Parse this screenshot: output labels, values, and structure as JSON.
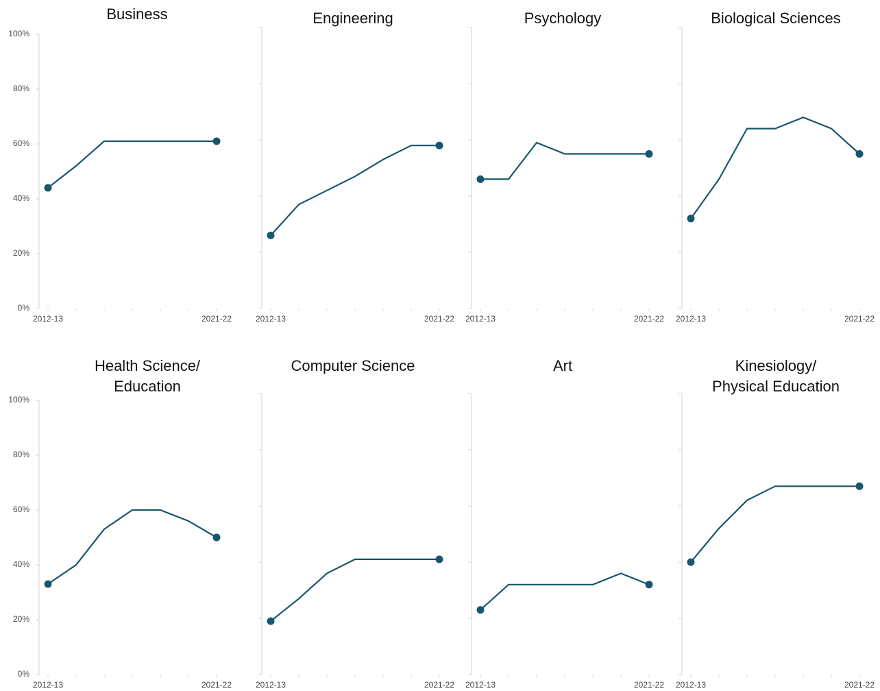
{
  "chart_data": [
    {
      "type": "line",
      "title": [
        "Business"
      ],
      "categories": [
        "2012-13",
        null,
        null,
        null,
        null,
        null,
        "2021-22"
      ],
      "series": [
        {
          "color": "#17566e",
          "values": [
            44,
            52,
            61,
            61,
            61,
            61,
            61
          ]
        }
      ],
      "ylim": [
        0,
        100
      ],
      "yticks": [
        {
          "value": 0,
          "label": "0%"
        },
        {
          "value": 20,
          "label": "20%"
        },
        {
          "value": 40,
          "label": "40%"
        },
        {
          "value": 60,
          "label": "60%"
        },
        {
          "value": 80,
          "label": "80%"
        },
        {
          "value": 100,
          "label": "100%"
        }
      ]
    },
    {
      "type": "line",
      "title": [
        "Engineering"
      ],
      "categories": [
        "2012-13",
        null,
        null,
        null,
        null,
        null,
        "2021-22"
      ],
      "series": [
        {
          "color": "#17566e",
          "values": [
            26,
            37,
            42,
            47,
            53,
            58,
            58
          ]
        }
      ],
      "ylim": [
        0,
        100
      ],
      "yticks": [
        0,
        20,
        40,
        60,
        80,
        100
      ]
    },
    {
      "type": "line",
      "title": [
        "Psychology"
      ],
      "categories": [
        "2012-13",
        null,
        null,
        null,
        null,
        null,
        "2021-22"
      ],
      "series": [
        {
          "color": "#17566e",
          "values": [
            46,
            46,
            59,
            55,
            55,
            55,
            55
          ]
        }
      ],
      "ylim": [
        0,
        100
      ],
      "yticks": [
        0,
        20,
        40,
        60,
        80,
        100
      ]
    },
    {
      "type": "line",
      "title": [
        "Biological Sciences"
      ],
      "categories": [
        "2012-13",
        null,
        null,
        null,
        null,
        null,
        "2021-22"
      ],
      "series": [
        {
          "color": "#17566e",
          "values": [
            32,
            46,
            64,
            64,
            68,
            64,
            55
          ]
        }
      ],
      "ylim": [
        0,
        100
      ],
      "yticks": [
        0,
        20,
        40,
        60,
        80,
        100
      ]
    },
    {
      "type": "line",
      "title": [
        "Health Science/",
        "Education"
      ],
      "categories": [
        "2012-13",
        null,
        null,
        null,
        null,
        null,
        "2021-22"
      ],
      "series": [
        {
          "color": "#17566e",
          "values": [
            33,
            40,
            53,
            60,
            60,
            56,
            50
          ]
        }
      ],
      "ylim": [
        0,
        100
      ],
      "yticks": [
        {
          "value": 0,
          "label": "0%"
        },
        {
          "value": 20,
          "label": "20%"
        },
        {
          "value": 40,
          "label": "40%"
        },
        {
          "value": 60,
          "label": "60%"
        },
        {
          "value": 80,
          "label": "80%"
        },
        {
          "value": 100,
          "label": "100%"
        }
      ]
    },
    {
      "type": "line",
      "title": [
        "Computer Science"
      ],
      "categories": [
        "2012-13",
        null,
        null,
        null,
        null,
        null,
        "2021-22"
      ],
      "series": [
        {
          "color": "#17566e",
          "values": [
            19,
            27,
            36,
            41,
            41,
            41,
            41
          ]
        }
      ],
      "ylim": [
        0,
        100
      ],
      "yticks": [
        0,
        20,
        40,
        60,
        80,
        100
      ]
    },
    {
      "type": "line",
      "title": [
        "Art"
      ],
      "categories": [
        "2012-13",
        null,
        null,
        null,
        null,
        null,
        "2021-22"
      ],
      "series": [
        {
          "color": "#17566e",
          "values": [
            23,
            32,
            32,
            32,
            32,
            36,
            32
          ]
        }
      ],
      "ylim": [
        0,
        100
      ],
      "yticks": [
        0,
        20,
        40,
        60,
        80,
        100
      ]
    },
    {
      "type": "line",
      "title": [
        "Kinesiology/",
        "Physical Education"
      ],
      "categories": [
        "2012-13",
        null,
        null,
        null,
        null,
        null,
        "2021-22"
      ],
      "series": [
        {
          "color": "#17566e",
          "values": [
            40,
            52,
            62,
            67,
            67,
            67,
            67
          ]
        }
      ],
      "ylim": [
        0,
        100
      ],
      "yticks": [
        0,
        20,
        40,
        60,
        80,
        100
      ]
    }
  ]
}
